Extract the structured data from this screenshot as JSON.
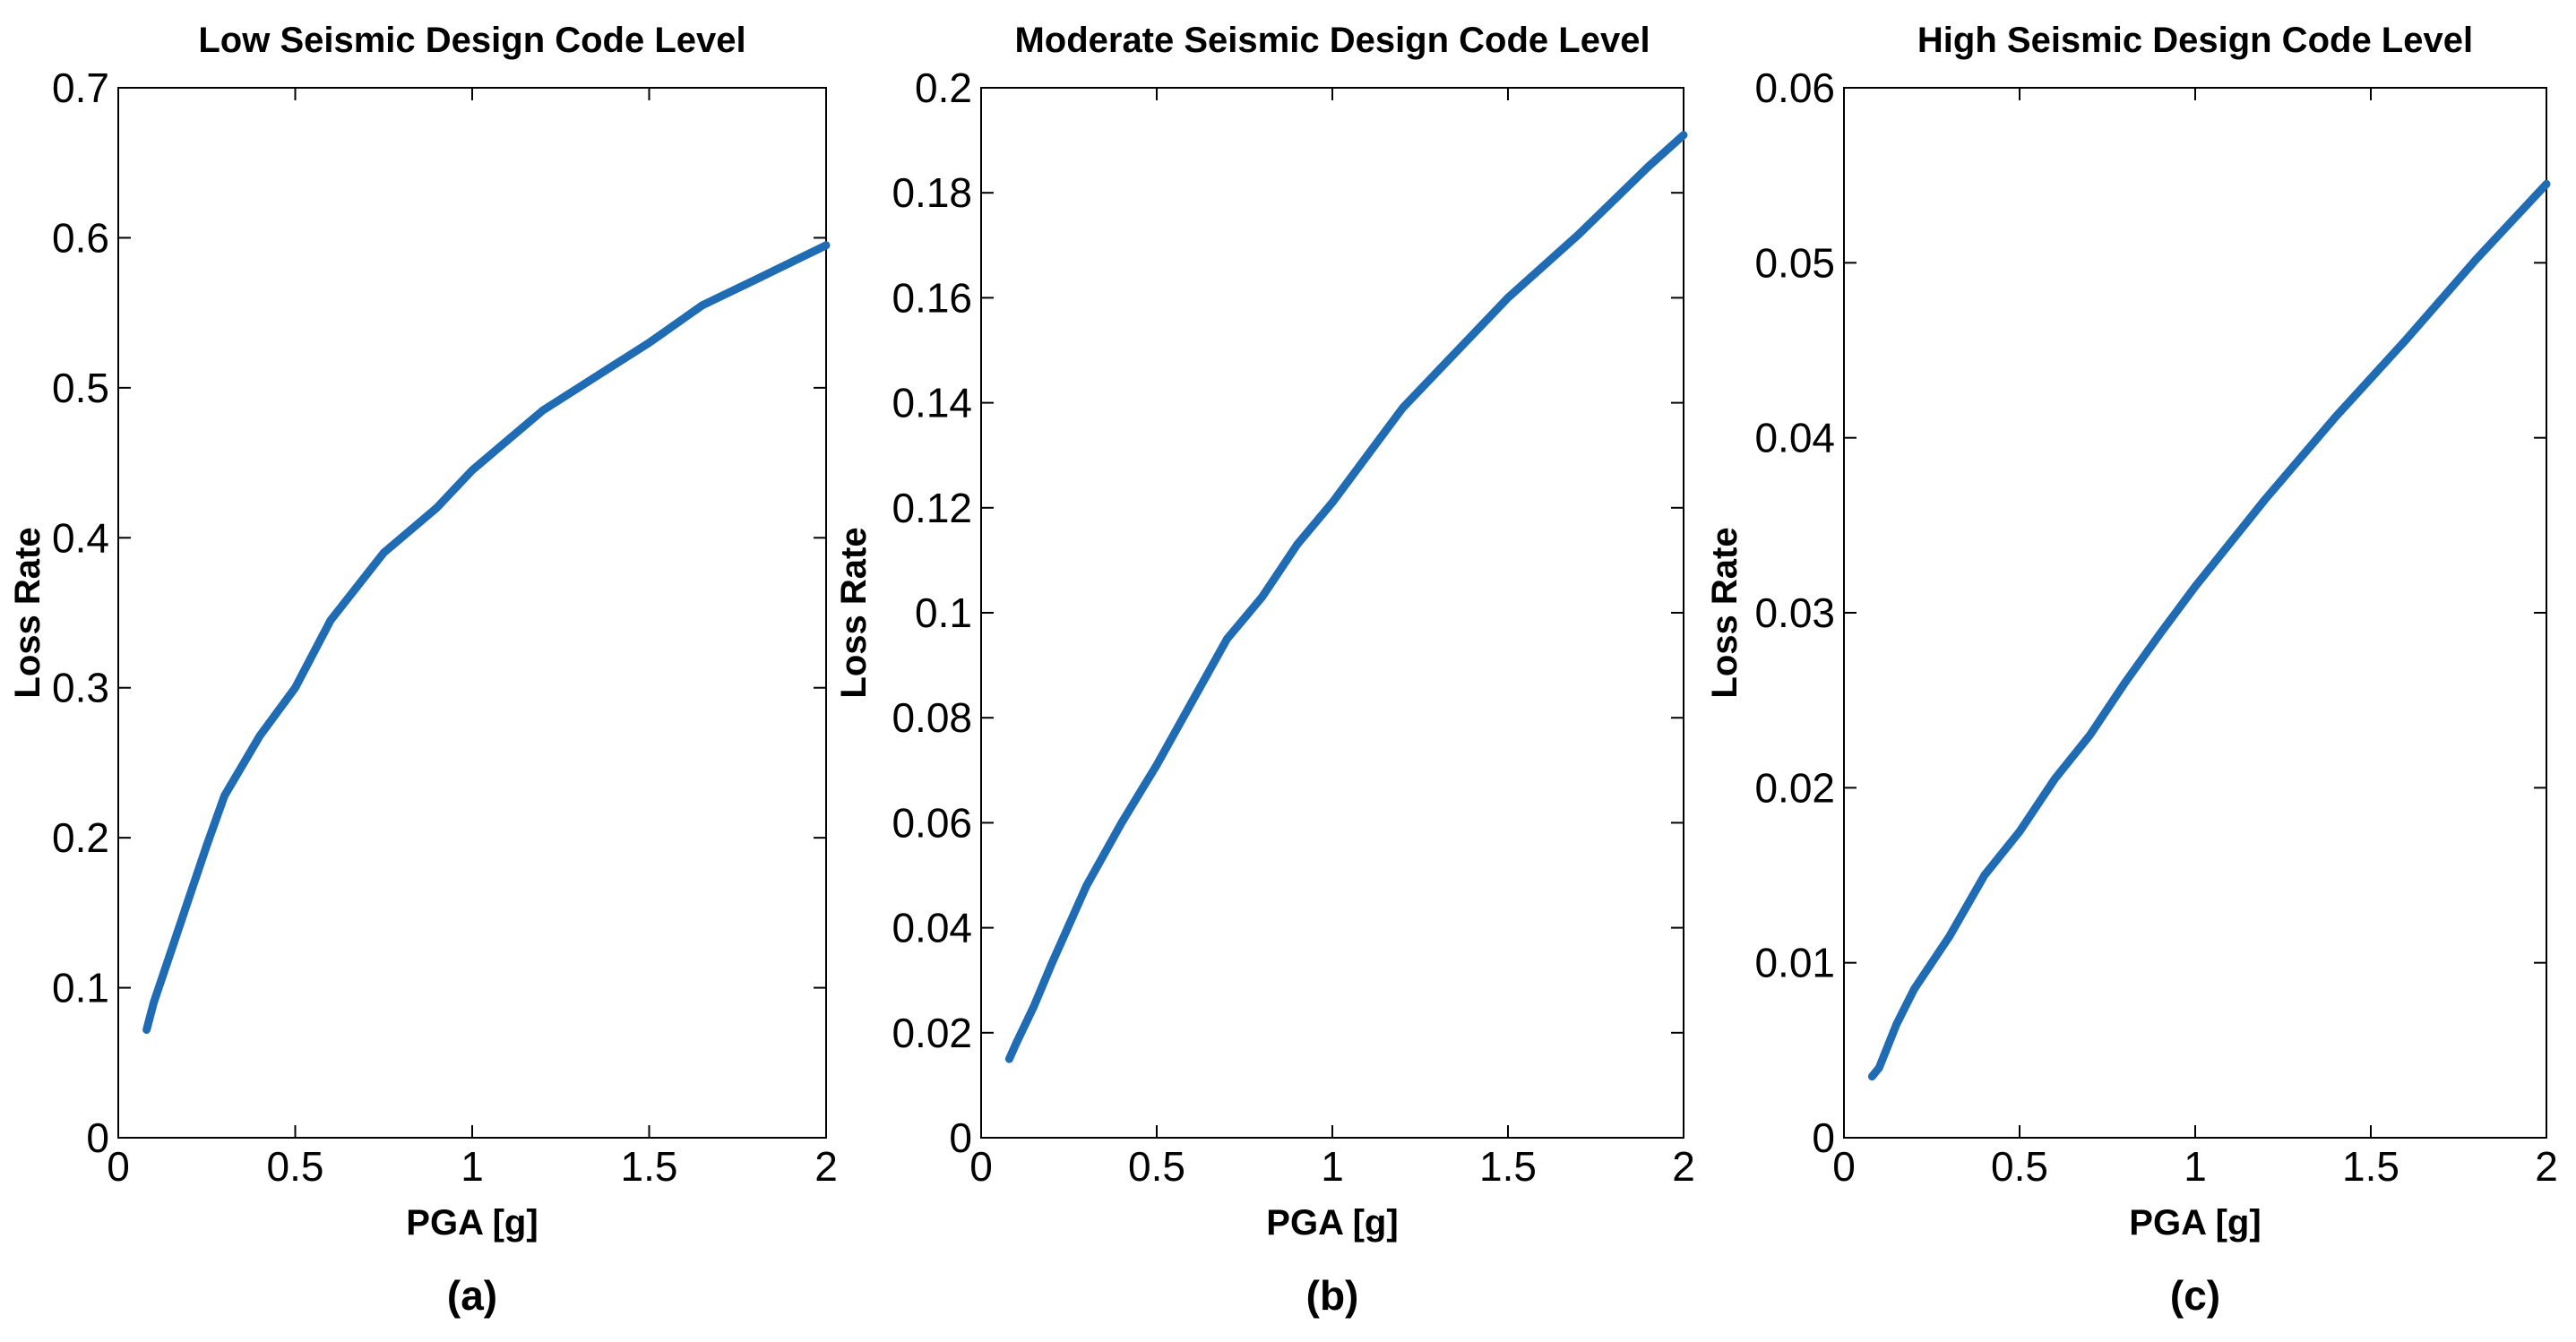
{
  "line_color": "#1f6cb4",
  "chart_data": [
    {
      "type": "line",
      "title": "Low Seismic Design Code Level",
      "xlabel": "PGA [g]",
      "ylabel": "Loss Rate",
      "panel_label": "(a)",
      "xlim": [
        0,
        2
      ],
      "ylim": [
        0,
        0.7
      ],
      "xticks": [
        "0",
        "0.5",
        "1",
        "1.5",
        "2"
      ],
      "yticks": [
        "0",
        "0.1",
        "0.2",
        "0.3",
        "0.4",
        "0.5",
        "0.6",
        "0.7"
      ],
      "grid": false,
      "series": [
        {
          "x": [
            0.08,
            0.1,
            0.15,
            0.2,
            0.25,
            0.3,
            0.4,
            0.5,
            0.6,
            0.75,
            0.9,
            1.0,
            1.2,
            1.4,
            1.5,
            1.65,
            1.8,
            2.0
          ],
          "y": [
            0.072,
            0.09,
            0.125,
            0.16,
            0.195,
            0.228,
            0.268,
            0.3,
            0.345,
            0.39,
            0.42,
            0.445,
            0.485,
            0.515,
            0.53,
            0.555,
            0.572,
            0.595
          ]
        }
      ]
    },
    {
      "type": "line",
      "title": "Moderate Seismic Design Code Level",
      "xlabel": "PGA [g]",
      "ylabel": "Loss Rate",
      "panel_label": "(b)",
      "xlim": [
        0,
        2
      ],
      "ylim": [
        0,
        0.2
      ],
      "xticks": [
        "0",
        "0.5",
        "1",
        "1.5",
        "2"
      ],
      "yticks": [
        "0",
        "0.02",
        "0.04",
        "0.06",
        "0.08",
        "0.1",
        "0.12",
        "0.14",
        "0.16",
        "0.18",
        "0.2"
      ],
      "grid": false,
      "series": [
        {
          "x": [
            0.08,
            0.1,
            0.15,
            0.2,
            0.3,
            0.4,
            0.5,
            0.6,
            0.7,
            0.8,
            0.9,
            1.0,
            1.1,
            1.2,
            1.3,
            1.5,
            1.7,
            1.9,
            2.0
          ],
          "y": [
            0.015,
            0.018,
            0.025,
            0.033,
            0.048,
            0.06,
            0.071,
            0.083,
            0.095,
            0.103,
            0.113,
            0.121,
            0.13,
            0.139,
            0.146,
            0.16,
            0.172,
            0.185,
            0.191
          ]
        }
      ]
    },
    {
      "type": "line",
      "title": "High Seismic Design Code Level",
      "xlabel": "PGA [g]",
      "ylabel": "Loss Rate",
      "panel_label": "(c)",
      "xlim": [
        0,
        2
      ],
      "ylim": [
        0,
        0.06
      ],
      "xticks": [
        "0",
        "0.5",
        "1",
        "1.5",
        "2"
      ],
      "yticks": [
        "0",
        "0.01",
        "0.02",
        "0.03",
        "0.04",
        "0.05",
        "0.06"
      ],
      "grid": false,
      "series": [
        {
          "x": [
            0.08,
            0.1,
            0.15,
            0.2,
            0.3,
            0.4,
            0.5,
            0.6,
            0.7,
            0.8,
            0.9,
            1.0,
            1.2,
            1.4,
            1.6,
            1.8,
            2.0
          ],
          "y": [
            0.0035,
            0.004,
            0.0065,
            0.0085,
            0.0115,
            0.015,
            0.0175,
            0.0205,
            0.023,
            0.026,
            0.0288,
            0.0315,
            0.0365,
            0.0412,
            0.0456,
            0.0502,
            0.0545
          ]
        }
      ]
    }
  ]
}
